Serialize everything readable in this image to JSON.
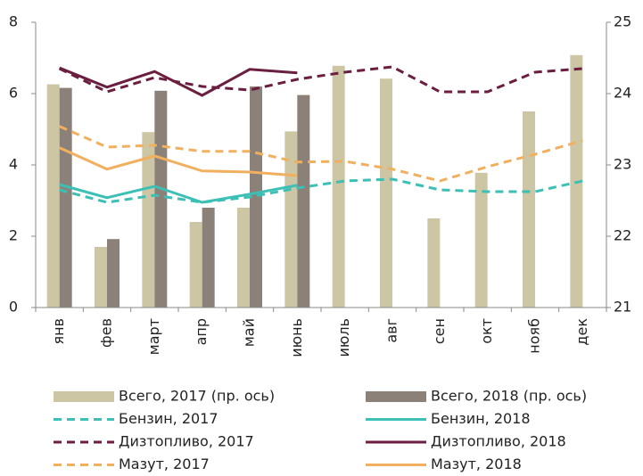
{
  "chart_data": {
    "type": "combo",
    "categories": [
      "янв",
      "фев",
      "март",
      "апр",
      "май",
      "июнь",
      "июль",
      "авг",
      "сен",
      "окт",
      "нояб",
      "дек"
    ],
    "ylim": [
      0,
      8
    ],
    "yticks": [
      0,
      2,
      4,
      6,
      8
    ],
    "y2lim": [
      21,
      25
    ],
    "y2ticks": [
      21,
      22,
      23,
      24,
      25
    ],
    "series": [
      {
        "name": "Всего, 2017 (пр. ось)",
        "kind": "bar",
        "axis": "y2",
        "color": "#cdc6a5",
        "values": [
          24.13,
          21.85,
          23.46,
          22.2,
          22.4,
          23.47,
          24.39,
          24.21,
          22.25,
          22.89,
          23.75,
          24.54
        ]
      },
      {
        "name": "Всего, 2018 (пр. ось)",
        "kind": "bar",
        "axis": "y2",
        "color": "#8c8178",
        "values": [
          24.08,
          21.96,
          24.04,
          22.4,
          24.1,
          23.98,
          null,
          null,
          null,
          null,
          null,
          null
        ]
      },
      {
        "name": "Бензин, 2017",
        "kind": "line",
        "line_style": "dashed",
        "color": "#3cbfb4",
        "values": [
          3.3,
          2.95,
          3.15,
          2.95,
          3.1,
          3.35,
          3.55,
          3.6,
          3.3,
          3.25,
          3.25,
          3.55
        ]
      },
      {
        "name": "Бензин, 2018",
        "kind": "line",
        "line_style": "solid",
        "color": "#3cbfb4",
        "values": [
          3.45,
          3.08,
          3.4,
          2.95,
          3.18,
          3.43,
          null,
          null,
          null,
          null,
          null,
          null
        ]
      },
      {
        "name": "Дизтопливо, 2017",
        "kind": "line",
        "line_style": "dashed",
        "color": "#6a1e40",
        "values": [
          6.7,
          6.05,
          6.45,
          6.2,
          6.1,
          6.4,
          6.6,
          6.75,
          6.05,
          6.05,
          6.6,
          6.7
        ]
      },
      {
        "name": "Дизтопливо, 2018",
        "kind": "line",
        "line_style": "solid",
        "color": "#6a1e40",
        "values": [
          6.72,
          6.18,
          6.62,
          5.95,
          6.68,
          6.58,
          null,
          null,
          null,
          null,
          null,
          null
        ]
      },
      {
        "name": "Мазут, 2017",
        "kind": "line",
        "line_style": "dashed",
        "color": "#f0b060",
        "values": [
          5.08,
          4.5,
          4.55,
          4.38,
          4.38,
          4.08,
          4.1,
          3.88,
          3.55,
          3.95,
          4.3,
          4.68
        ]
      },
      {
        "name": "Мазут, 2018",
        "kind": "line",
        "line_style": "solid",
        "color": "#f0b060",
        "values": [
          4.48,
          3.88,
          4.25,
          3.83,
          3.8,
          3.7,
          null,
          null,
          null,
          null,
          null,
          null
        ]
      }
    ]
  }
}
